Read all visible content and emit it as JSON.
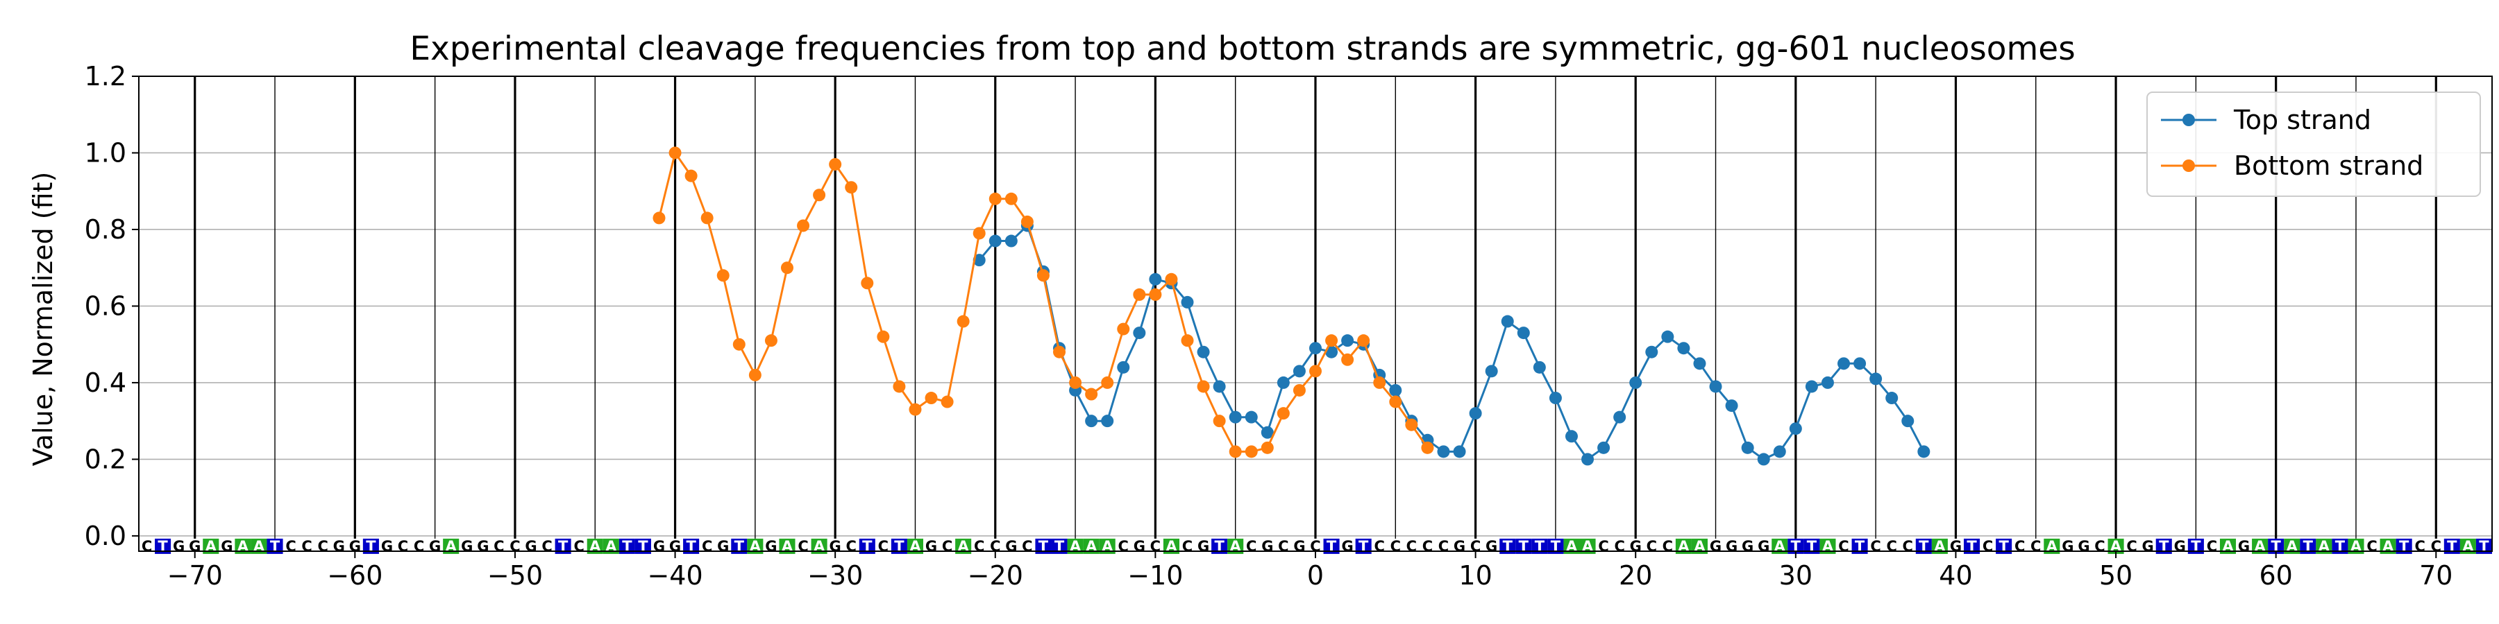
{
  "chart_data": {
    "type": "line",
    "title": "Experimental cleavage frequencies from top and bottom strands are symmetric, gg-601 nucleosomes",
    "xlabel": "",
    "ylabel": "Value, Normalized (fit)",
    "xlim": [
      -73.5,
      73.5
    ],
    "ylim": [
      -0.04,
      1.2
    ],
    "xticks": [
      -70,
      -60,
      -50,
      -40,
      -30,
      -20,
      -10,
      0,
      10,
      20,
      30,
      40,
      50,
      60,
      70
    ],
    "xtick_labels": [
      "−70",
      "−60",
      "−50",
      "−40",
      "−30",
      "−20",
      "−10",
      "0",
      "10",
      "20",
      "30",
      "40",
      "50",
      "60",
      "70"
    ],
    "yticks": [
      0.0,
      0.2,
      0.4,
      0.6,
      0.8,
      1.0,
      1.2
    ],
    "ytick_labels": [
      "0.0",
      "0.2",
      "0.4",
      "0.6",
      "0.8",
      "1.0",
      "1.2"
    ],
    "grid": "horizontal",
    "legend_position": "top-right",
    "sequence": "CTGGAGAATCCCGGTGCCGAGGCCGCTCAATTGGTCGTAGACAGCTCTAGCACCGCTTAAACGCACGTACGCGCTGTCCCCCGCGTTTTAACCGCCAAGGGGATTACTCCCTAGTCTCCAGGCACGTGTCAGATATATACATCCTAT",
    "sequence_start": -73,
    "base_colors": {
      "A": "#22aa22",
      "T": "#0000c8",
      "G": "#ffffff",
      "C": "#ffffff"
    },
    "series": [
      {
        "name": "Top strand",
        "color": "#1f77b4",
        "x": [
          -21,
          -20,
          -19,
          -18,
          -17,
          -16,
          -15,
          -14,
          -13,
          -12,
          -11,
          -10,
          -9,
          -8,
          -7,
          -6,
          -5,
          -4,
          -3,
          -2,
          -1,
          0,
          1,
          2,
          3,
          4,
          5,
          6,
          7,
          8,
          9,
          10,
          11,
          12,
          13,
          14,
          15,
          16,
          17,
          18,
          19,
          20,
          21,
          22,
          23,
          24,
          25,
          26,
          27,
          28,
          29,
          30,
          31,
          32,
          33,
          34,
          35,
          36,
          37,
          38
        ],
        "y": [
          0.72,
          0.77,
          0.77,
          0.81,
          0.69,
          0.49,
          0.38,
          0.3,
          0.3,
          0.44,
          0.53,
          0.67,
          0.66,
          0.61,
          0.48,
          0.39,
          0.31,
          0.31,
          0.27,
          0.4,
          0.43,
          0.49,
          0.48,
          0.51,
          0.5,
          0.42,
          0.38,
          0.3,
          0.25,
          0.22,
          0.22,
          0.32,
          0.43,
          0.56,
          0.53,
          0.44,
          0.36,
          0.26,
          0.2,
          0.23,
          0.31,
          0.4,
          0.48,
          0.52,
          0.49,
          0.45,
          0.39,
          0.34,
          0.23,
          0.2,
          0.22,
          0.28,
          0.39,
          0.4,
          0.45,
          0.45,
          0.41,
          0.36,
          0.3,
          0.22
        ]
      },
      {
        "name": "Bottom strand",
        "color": "#ff7f0e",
        "x": [
          -41,
          -40,
          -39,
          -38,
          -37,
          -36,
          -35,
          -34,
          -33,
          -32,
          -31,
          -30,
          -29,
          -28,
          -27,
          -26,
          -25,
          -24,
          -23,
          -22,
          -21,
          -20,
          -19,
          -18,
          -17,
          -16,
          -15,
          -14,
          -13,
          -12,
          -11,
          -10,
          -9,
          -8,
          -7,
          -6,
          -5,
          -4,
          -3,
          -2,
          -1,
          0,
          1,
          2,
          3,
          4,
          5,
          6,
          7
        ],
        "y": [
          0.83,
          1.0,
          0.94,
          0.83,
          0.68,
          0.5,
          0.42,
          0.51,
          0.7,
          0.81,
          0.89,
          0.97,
          0.91,
          0.66,
          0.52,
          0.39,
          0.33,
          0.36,
          0.35,
          0.56,
          0.79,
          0.88,
          0.88,
          0.82,
          0.68,
          0.48,
          0.4,
          0.37,
          0.4,
          0.54,
          0.63,
          0.63,
          0.67,
          0.51,
          0.39,
          0.3,
          0.22,
          0.22,
          0.23,
          0.32,
          0.38,
          0.43,
          0.51,
          0.46,
          0.51,
          0.4,
          0.35,
          0.29,
          0.23
        ]
      }
    ]
  }
}
